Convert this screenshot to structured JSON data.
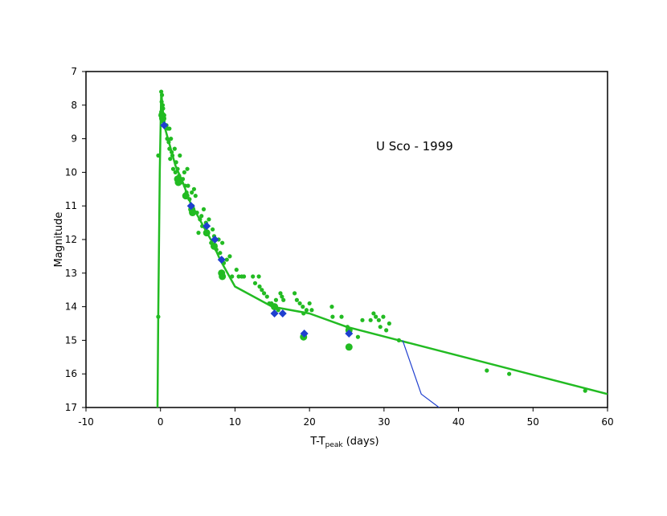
{
  "chart_data": {
    "type": "scatter",
    "annotation": "U Sco - 1999",
    "xlabel": {
      "main": "T-T",
      "sub": "peak",
      "rest": " (days)"
    },
    "ylabel": "Magnitude",
    "xlim": [
      -10,
      60
    ],
    "ylim": [
      7,
      17
    ],
    "y_inverted": true,
    "grid": false,
    "legend": "none",
    "x_ticks": [
      "-10",
      "0",
      "10",
      "20",
      "30",
      "40",
      "50",
      "60"
    ],
    "y_ticks": [
      "7",
      "8",
      "9",
      "10",
      "11",
      "12",
      "13",
      "14",
      "15",
      "16",
      "17"
    ],
    "colors": {
      "green": "#22bb22",
      "blue": "#1f3fcf"
    },
    "series": [
      {
        "kind": "points-small",
        "color": "green",
        "points": [
          [
            -0.3,
            9.5
          ],
          [
            -0.3,
            14.3
          ],
          [
            0.1,
            7.6
          ],
          [
            0.2,
            7.7
          ],
          [
            0.15,
            7.9
          ],
          [
            0.3,
            8.0
          ],
          [
            0.1,
            8.2
          ],
          [
            0.35,
            8.1
          ],
          [
            0.2,
            8.4
          ],
          [
            0.5,
            8.3
          ],
          [
            0.4,
            8.5
          ],
          [
            0.6,
            8.6
          ],
          [
            0.8,
            8.6
          ],
          [
            1.0,
            8.7
          ],
          [
            1.2,
            8.7
          ],
          [
            0.9,
            9.0
          ],
          [
            1.1,
            9.1
          ],
          [
            1.4,
            9.0
          ],
          [
            1.2,
            9.3
          ],
          [
            1.5,
            9.4
          ],
          [
            1.3,
            9.6
          ],
          [
            1.6,
            9.5
          ],
          [
            1.9,
            9.3
          ],
          [
            2.1,
            9.7
          ],
          [
            1.7,
            9.9
          ],
          [
            2.0,
            10.0
          ],
          [
            2.3,
            9.9
          ],
          [
            2.5,
            10.1
          ],
          [
            2.6,
            9.5
          ],
          [
            2.8,
            10.3
          ],
          [
            3.0,
            10.2
          ],
          [
            3.2,
            10.0
          ],
          [
            3.3,
            10.4
          ],
          [
            3.6,
            9.9
          ],
          [
            3.7,
            10.4
          ],
          [
            3.5,
            10.6
          ],
          [
            3.9,
            10.8
          ],
          [
            4.2,
            10.6
          ],
          [
            4.5,
            10.5
          ],
          [
            4.3,
            11.0
          ],
          [
            4.7,
            10.7
          ],
          [
            4.9,
            11.2
          ],
          [
            5.1,
            11.8
          ],
          [
            5.3,
            11.4
          ],
          [
            5.5,
            11.3
          ],
          [
            5.6,
            11.6
          ],
          [
            5.8,
            11.1
          ],
          [
            6.1,
            11.5
          ],
          [
            6.3,
            11.6
          ],
          [
            6.5,
            11.4
          ],
          [
            6.8,
            12.1
          ],
          [
            7.0,
            11.7
          ],
          [
            7.2,
            11.9
          ],
          [
            7.5,
            12.3
          ],
          [
            7.8,
            12.0
          ],
          [
            8.0,
            12.4
          ],
          [
            8.3,
            12.1
          ],
          [
            8.5,
            12.7
          ],
          [
            8.9,
            12.6
          ],
          [
            9.3,
            12.5
          ],
          [
            9.6,
            13.1
          ],
          [
            10.2,
            12.9
          ],
          [
            10.5,
            13.1
          ],
          [
            10.9,
            13.1
          ],
          [
            11.2,
            13.1
          ],
          [
            12.4,
            13.1
          ],
          [
            12.7,
            13.3
          ],
          [
            13.2,
            13.1
          ],
          [
            13.3,
            13.4
          ],
          [
            13.6,
            13.5
          ],
          [
            13.9,
            13.6
          ],
          [
            14.3,
            13.7
          ],
          [
            14.6,
            13.9
          ],
          [
            14.9,
            13.9
          ],
          [
            15.5,
            13.8
          ],
          [
            15.8,
            14.1
          ],
          [
            16.1,
            13.6
          ],
          [
            16.3,
            13.7
          ],
          [
            16.5,
            13.8
          ],
          [
            18.0,
            13.6
          ],
          [
            18.3,
            13.8
          ],
          [
            18.7,
            13.9
          ],
          [
            19.1,
            14.0
          ],
          [
            19.2,
            14.2
          ],
          [
            19.6,
            14.1
          ],
          [
            20.0,
            13.9
          ],
          [
            20.3,
            14.1
          ],
          [
            23.0,
            14.0
          ],
          [
            23.1,
            14.3
          ],
          [
            24.3,
            14.3
          ],
          [
            25.1,
            14.6
          ],
          [
            26.5,
            14.9
          ],
          [
            27.1,
            14.4
          ],
          [
            28.2,
            14.4
          ],
          [
            28.6,
            14.2
          ],
          [
            28.9,
            14.3
          ],
          [
            29.3,
            14.4
          ],
          [
            29.5,
            14.6
          ],
          [
            29.9,
            14.3
          ],
          [
            30.3,
            14.7
          ],
          [
            30.7,
            14.5
          ],
          [
            32.0,
            15.0
          ],
          [
            43.8,
            15.9
          ],
          [
            46.8,
            16.0
          ],
          [
            57.0,
            16.5
          ]
        ]
      },
      {
        "kind": "points-large",
        "color": "green",
        "points": [
          [
            0.2,
            8.3
          ],
          [
            0.3,
            8.4
          ],
          [
            2.3,
            10.2
          ],
          [
            2.4,
            10.3
          ],
          [
            3.4,
            10.7
          ],
          [
            4.2,
            11.1
          ],
          [
            4.3,
            11.2
          ],
          [
            6.2,
            11.8
          ],
          [
            7.2,
            12.2
          ],
          [
            8.2,
            13.0
          ],
          [
            8.3,
            13.1
          ],
          [
            15.3,
            14.0
          ],
          [
            19.2,
            14.9
          ],
          [
            25.3,
            14.7
          ],
          [
            25.3,
            15.2
          ]
        ]
      },
      {
        "kind": "diamonds",
        "color": "blue",
        "points": [
          [
            0.5,
            8.6
          ],
          [
            4.1,
            11.0
          ],
          [
            6.2,
            11.6
          ],
          [
            7.3,
            12.0
          ],
          [
            8.2,
            12.6
          ],
          [
            15.3,
            14.2
          ],
          [
            16.4,
            14.2
          ],
          [
            19.3,
            14.8
          ],
          [
            25.3,
            14.8
          ]
        ]
      },
      {
        "kind": "line",
        "color": "green",
        "width": 2.5,
        "points": [
          [
            -0.4,
            17.0
          ],
          [
            -0.3,
            14.3
          ],
          [
            -0.1,
            10.0
          ],
          [
            0.1,
            7.6
          ],
          [
            0.5,
            8.6
          ],
          [
            1.0,
            9.0
          ],
          [
            2.0,
            9.8
          ],
          [
            3.0,
            10.3
          ],
          [
            4.0,
            10.9
          ],
          [
            5.0,
            11.3
          ],
          [
            6.0,
            11.7
          ],
          [
            7.0,
            12.1
          ],
          [
            8.0,
            12.6
          ],
          [
            10.0,
            13.4
          ],
          [
            15.0,
            14.0
          ],
          [
            20.0,
            14.2
          ],
          [
            25.0,
            14.6
          ],
          [
            32.0,
            15.0
          ],
          [
            60.0,
            16.6
          ]
        ]
      },
      {
        "kind": "line",
        "color": "blue",
        "width": 1.2,
        "points": [
          [
            32.5,
            15.0
          ],
          [
            35.0,
            16.6
          ],
          [
            38.0,
            17.1
          ]
        ]
      }
    ]
  }
}
